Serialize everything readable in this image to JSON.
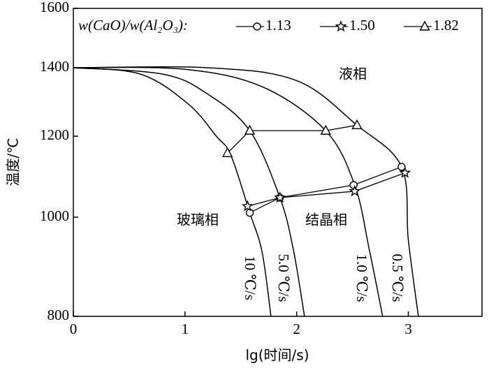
{
  "chart_data": {
    "type": "line",
    "xlabel": "lg(时间/s)",
    "ylabel": "温度/℃",
    "xlim": [
      0,
      3.66
    ],
    "ylim": [
      800,
      1600
    ],
    "ylog": true,
    "xticks": [
      0,
      1,
      2,
      3
    ],
    "yticks": [
      800,
      1000,
      1200,
      1400,
      1600
    ],
    "legend_title": "w(CaO)/w(Al₂O₃):",
    "legend": "top",
    "curves": [
      {
        "name": "10 ℃/s",
        "color": "#000000",
        "x": [
          0,
          0.6,
          1.03,
          1.28,
          1.41,
          1.58,
          1.69,
          1.77
        ],
        "values": [
          1400,
          1380,
          1290,
          1200,
          1150,
          1010,
          925,
          800
        ]
      },
      {
        "name": "5.0 ℃/s",
        "color": "#000000",
        "x": [
          0,
          0.8,
          1.2,
          1.58,
          1.85,
          1.97,
          2.07
        ],
        "values": [
          1400,
          1380,
          1320,
          1215,
          1045,
          930,
          800
        ]
      },
      {
        "name": "1.0 ℃/s",
        "color": "#000000",
        "x": [
          0,
          1.0,
          1.7,
          2.26,
          2.52,
          2.65,
          2.77
        ],
        "values": [
          1400,
          1395,
          1340,
          1215,
          1075,
          930,
          800
        ]
      },
      {
        "name": "0.5 ℃/s",
        "color": "#000000",
        "x": [
          0,
          1.2,
          2.0,
          2.54,
          2.94,
          3.0,
          3.09
        ],
        "values": [
          1400,
          1400,
          1360,
          1230,
          1120,
          950,
          800
        ]
      }
    ],
    "series": [
      {
        "name": "1.13",
        "marker": "circle",
        "color": "#000000",
        "x": [
          1.58,
          1.85,
          2.51,
          2.94
        ],
        "values": [
          1010,
          1045,
          1075,
          1120
        ]
      },
      {
        "name": "1.50",
        "marker": "star",
        "color": "#000000",
        "x": [
          1.56,
          1.85,
          2.52,
          2.97
        ],
        "values": [
          1025,
          1045,
          1060,
          1105
        ]
      },
      {
        "name": "1.82",
        "marker": "triangle",
        "color": "#000000",
        "x": [
          1.38,
          1.58,
          2.26,
          2.54
        ],
        "values": [
          1155,
          1215,
          1215,
          1230
        ]
      }
    ],
    "annotations": [
      "液相",
      "玻璃相",
      "结晶相"
    ]
  }
}
